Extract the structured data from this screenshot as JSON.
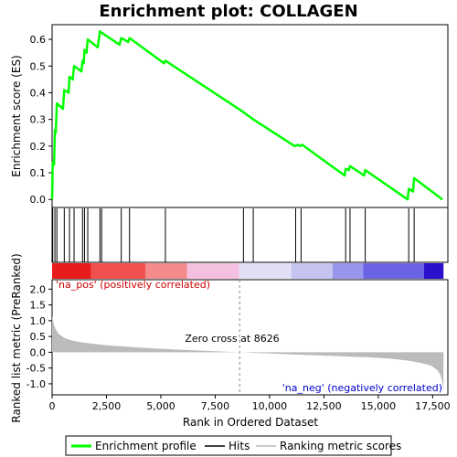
{
  "chart_data": {
    "type": "line",
    "title": "Enrichment plot: COLLAGEN",
    "xlabel": "Rank in Ordered Dataset",
    "x_ticks": [
      "0",
      "2,500",
      "5,000",
      "7,500",
      "10,000",
      "12,500",
      "15,000",
      "17,500"
    ],
    "x_tick_values": [
      0,
      2500,
      5000,
      7500,
      10000,
      12500,
      15000,
      17500
    ],
    "xlim": [
      0,
      18200
    ],
    "top_panel": {
      "ylabel": "Enrichment score (ES)",
      "ylim": [
        -0.03,
        0.655
      ],
      "y_ticks": [
        "0.0",
        "0.1",
        "0.2",
        "0.3",
        "0.4",
        "0.5",
        "0.6"
      ],
      "y_tick_values": [
        0.0,
        0.1,
        0.2,
        0.3,
        0.4,
        0.5,
        0.6
      ],
      "series": [
        {
          "name": "Enrichment profile",
          "color": "#00ff00",
          "points": [
            [
              0,
              0.0
            ],
            [
              30,
              0.14
            ],
            [
              90,
              0.13
            ],
            [
              130,
              0.26
            ],
            [
              170,
              0.25
            ],
            [
              220,
              0.36
            ],
            [
              500,
              0.34
            ],
            [
              560,
              0.41
            ],
            [
              760,
              0.4
            ],
            [
              800,
              0.46
            ],
            [
              950,
              0.45
            ],
            [
              1010,
              0.5
            ],
            [
              1350,
              0.48
            ],
            [
              1400,
              0.52
            ],
            [
              1460,
              0.51
            ],
            [
              1490,
              0.56
            ],
            [
              1580,
              0.55
            ],
            [
              1640,
              0.6
            ],
            [
              2100,
              0.57
            ],
            [
              2200,
              0.63
            ],
            [
              2280,
              0.625
            ],
            [
              3100,
              0.58
            ],
            [
              3180,
              0.605
            ],
            [
              3500,
              0.59
            ],
            [
              3560,
              0.605
            ],
            [
              5150,
              0.51
            ],
            [
              5210,
              0.52
            ],
            [
              8750,
              0.33
            ],
            [
              9250,
              0.3
            ],
            [
              11150,
              0.2
            ],
            [
              11300,
              0.205
            ],
            [
              11400,
              0.2
            ],
            [
              11500,
              0.205
            ],
            [
              13450,
              0.09
            ],
            [
              13500,
              0.115
            ],
            [
              13650,
              0.11
            ],
            [
              13700,
              0.125
            ],
            [
              14350,
              0.09
            ],
            [
              14400,
              0.11
            ],
            [
              16350,
              0.0
            ],
            [
              16400,
              0.04
            ],
            [
              16600,
              0.03
            ],
            [
              16650,
              0.08
            ],
            [
              17950,
              0.0
            ]
          ]
        }
      ]
    },
    "hits_panel": {
      "name": "Hits",
      "hit_positions": [
        30,
        130,
        220,
        560,
        800,
        1010,
        1400,
        1490,
        1640,
        2200,
        2280,
        3180,
        3560,
        5210,
        8800,
        9250,
        11200,
        11450,
        13500,
        13700,
        14400,
        16400,
        16650
      ]
    },
    "color_bar": {
      "label_pos": "'na_pos' (positively correlated)",
      "label_neg": "'na_neg' (negatively correlated)",
      "pos_color": "#cc0000",
      "neg_color": "#0000cc",
      "segments": [
        {
          "from": 0,
          "to": 1800,
          "color": "#e81c1c"
        },
        {
          "from": 1800,
          "to": 4300,
          "color": "#f05050"
        },
        {
          "from": 4300,
          "to": 6200,
          "color": "#f58a8a"
        },
        {
          "from": 6200,
          "to": 8600,
          "color": "#f5c0e0"
        },
        {
          "from": 8600,
          "to": 11000,
          "color": "#e2def6"
        },
        {
          "from": 11000,
          "to": 12900,
          "color": "#c5c3f0"
        },
        {
          "from": 12900,
          "to": 14300,
          "color": "#9896ea"
        },
        {
          "from": 14300,
          "to": 17100,
          "color": "#6a64e4"
        },
        {
          "from": 17100,
          "to": 18000,
          "color": "#2a10cc"
        }
      ]
    },
    "bottom_panel": {
      "ylabel": "Ranked list metric (PreRanked)",
      "ylim": [
        -1.35,
        2.3
      ],
      "y_ticks": [
        "2.0",
        "1.5",
        "1.0",
        "0.5",
        "0.0",
        "-0.5",
        "-1.0"
      ],
      "y_tick_values": [
        2.0,
        1.5,
        1.0,
        0.5,
        0.0,
        -0.5,
        -1.0
      ],
      "series": [
        {
          "name": "Ranking metric scores",
          "color": "#bbbbbb",
          "points": [
            [
              0,
              1.15
            ],
            [
              60,
              0.95
            ],
            [
              150,
              0.75
            ],
            [
              300,
              0.58
            ],
            [
              600,
              0.44
            ],
            [
              1000,
              0.36
            ],
            [
              1500,
              0.3
            ],
            [
              2500,
              0.22
            ],
            [
              4000,
              0.15
            ],
            [
              5500,
              0.09
            ],
            [
              7000,
              0.05
            ],
            [
              8626,
              0.0
            ],
            [
              10000,
              -0.04
            ],
            [
              11500,
              -0.08
            ],
            [
              13000,
              -0.12
            ],
            [
              14500,
              -0.16
            ],
            [
              15500,
              -0.2
            ],
            [
              16300,
              -0.26
            ],
            [
              16900,
              -0.33
            ],
            [
              17400,
              -0.42
            ],
            [
              17700,
              -0.55
            ],
            [
              17850,
              -0.7
            ],
            [
              17950,
              -0.95
            ],
            [
              18000,
              -1.25
            ]
          ]
        }
      ],
      "zero_cross_label": "Zero cross at 8626",
      "zero_cross": 8626
    },
    "legend": {
      "placement": "bottom",
      "entries": [
        "Enrichment profile",
        "Hits",
        "Ranking metric scores"
      ]
    }
  }
}
